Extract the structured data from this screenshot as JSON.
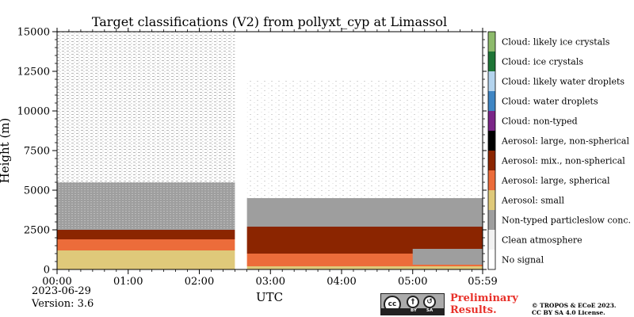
{
  "chart_data": {
    "type": "heatmap",
    "title": "Target classifications (V2) from pollyxt_cyp at Limassol",
    "xlabel": "UTC",
    "ylabel": "Height (m)",
    "x_range_hours": [
      0.0,
      5.9833
    ],
    "ylim": [
      0,
      15000
    ],
    "x_ticks": [
      "00:00",
      "01:00",
      "02:00",
      "03:00",
      "04:00",
      "05:00",
      "05:59"
    ],
    "x_tick_hours": [
      0,
      1,
      2,
      3,
      4,
      5,
      5.9833
    ],
    "y_ticks": [
      0,
      2500,
      5000,
      7500,
      10000,
      12500,
      15000
    ],
    "y_tick_labels": [
      "0",
      "2500",
      "5000",
      "7500",
      "10000",
      "12500",
      "15000"
    ],
    "data_gap_hours": [
      2.5,
      2.67
    ],
    "legend": [
      {
        "label": "No signal",
        "color": "#ffffff"
      },
      {
        "label": "Clean atmosphere",
        "color": "#f2f2f2"
      },
      {
        "label": "Non-typed particleslow conc.",
        "color": "#9e9e9e"
      },
      {
        "label": "Aerosol: small",
        "color": "#dfc97a"
      },
      {
        "label": "Aerosol: large, spherical",
        "color": "#ec6c3a"
      },
      {
        "label": "Aerosol: mix., non-spherical",
        "color": "#8b2500"
      },
      {
        "label": "Aerosol: large, non-spherical",
        "color": "#000000"
      },
      {
        "label": "Cloud: non-typed",
        "color": "#7a2587"
      },
      {
        "label": "Cloud: water droplets",
        "color": "#3f86c4"
      },
      {
        "label": "Cloud: likely water droplets",
        "color": "#b4d4ee"
      },
      {
        "label": "Cloud: ice crystals",
        "color": "#1e7536"
      },
      {
        "label": "Cloud: likely ice crystals",
        "color": "#8dba6b"
      }
    ],
    "layers": [
      {
        "class": "Aerosol: small",
        "from_h": 0.0,
        "to_h": 2.5,
        "bottom_m": 0,
        "top_m": 1200
      },
      {
        "class": "Aerosol: small",
        "from_h": 2.67,
        "to_h": 5.9833,
        "bottom_m": 0,
        "top_m": 200
      },
      {
        "class": "Aerosol: large, spherical",
        "from_h": 0.0,
        "to_h": 2.5,
        "bottom_m": 1200,
        "top_m": 1900
      },
      {
        "class": "Aerosol: large, spherical",
        "from_h": 2.67,
        "to_h": 5.9833,
        "bottom_m": 200,
        "top_m": 1000
      },
      {
        "class": "Aerosol: mix., non-spherical",
        "from_h": 0.0,
        "to_h": 2.5,
        "bottom_m": 1900,
        "top_m": 2500
      },
      {
        "class": "Aerosol: mix., non-spherical",
        "from_h": 2.67,
        "to_h": 5.9833,
        "bottom_m": 1000,
        "top_m": 2700
      },
      {
        "class": "Non-typed particleslow conc.",
        "from_h": 5.0,
        "to_h": 5.9833,
        "bottom_m": 300,
        "top_m": 1300
      },
      {
        "class": "Non-typed particleslow conc.",
        "from_h": 0.0,
        "to_h": 2.5,
        "bottom_m": 2500,
        "top_m": 5500
      },
      {
        "class": "Non-typed particleslow conc.",
        "from_h": 2.67,
        "to_h": 5.9833,
        "bottom_m": 2700,
        "top_m": 4500
      },
      {
        "class": "Clean atmosphere",
        "from_h": 0.0,
        "to_h": 2.5,
        "bottom_m": 5500,
        "top_m": 15000
      }
    ]
  },
  "footer": {
    "date": "2023-06-29",
    "version": "Version: 3.6",
    "preliminary_line1": "Preliminary",
    "preliminary_line2": "Results.",
    "copyright_line1": "© TROPOS & ECoE 2023.",
    "copyright_line2": "CC BY SA 4.0 License.",
    "cc_badge": {
      "cc": "cc",
      "by": "BY",
      "sa": "SA"
    }
  }
}
